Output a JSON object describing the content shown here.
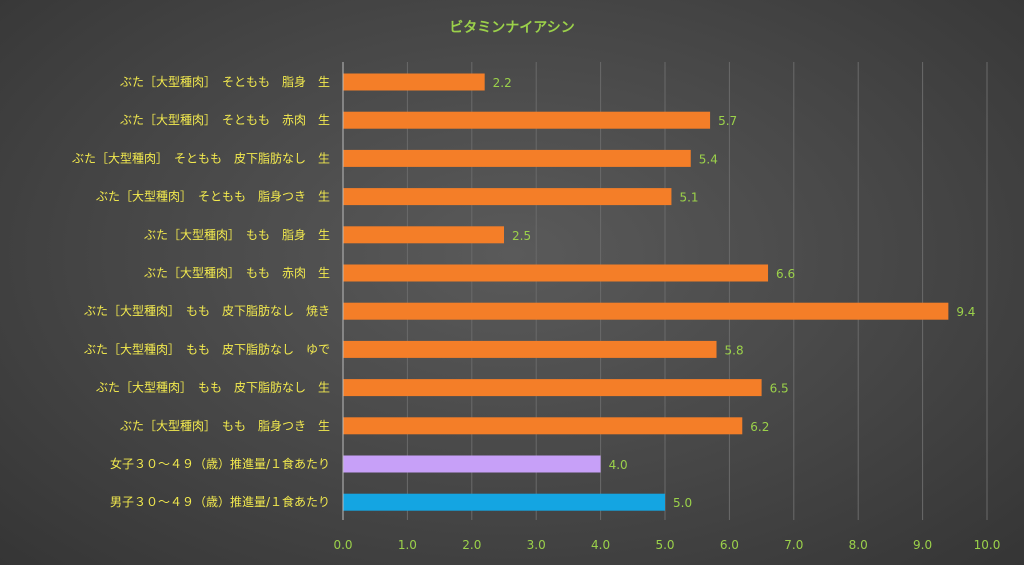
{
  "chart_data": {
    "type": "bar",
    "orientation": "horizontal",
    "title": "ビタミンナイアシン",
    "categories": [
      "ぶた［大型種肉］　そともも　脂身　生",
      "ぶた［大型種肉］　そともも　赤肉　生",
      "ぶた［大型種肉］　そともも　皮下脂肪なし　生",
      "ぶた［大型種肉］　そともも　脂身つき　生",
      "ぶた［大型種肉］　もも　脂身　生",
      "ぶた［大型種肉］　もも　赤肉　生",
      "ぶた［大型種肉］　もも　皮下脂肪なし　焼き",
      "ぶた［大型種肉］　もも　皮下脂肪なし　ゆで",
      "ぶた［大型種肉］　もも　皮下脂肪なし　生",
      "ぶた［大型種肉］　もも　脂身つき　生",
      "女子３０～４９（歳）推進量/１食あたり",
      "男子３０～４９（歳）推進量/１食あたり"
    ],
    "values": [
      2.2,
      5.7,
      5.4,
      5.1,
      2.5,
      6.6,
      9.4,
      5.8,
      6.5,
      6.2,
      4.0,
      5.0
    ],
    "data_labels": [
      "2.2",
      "5.7",
      "5.4",
      "5.1",
      "2.5",
      "6.6",
      "9.4",
      "5.8",
      "6.5",
      "6.2",
      "4.0",
      "5.0"
    ],
    "bar_colors": [
      "#f47e28",
      "#f47e28",
      "#f47e28",
      "#f47e28",
      "#f47e28",
      "#f47e28",
      "#f47e28",
      "#f47e28",
      "#f47e28",
      "#f47e28",
      "#c7a0f8",
      "#14a5e2"
    ],
    "xlim": [
      0,
      10
    ],
    "x_ticks": [
      "0.0",
      "1.0",
      "2.0",
      "3.0",
      "4.0",
      "5.0",
      "6.0",
      "7.0",
      "8.0",
      "9.0",
      "10.0"
    ],
    "grid": "vertical",
    "legend": "none",
    "colors": {
      "title": "#9bd14a",
      "category_text": "#f2e94e",
      "tick_text": "#9bd14a",
      "value_text": "#9bd14a"
    }
  }
}
